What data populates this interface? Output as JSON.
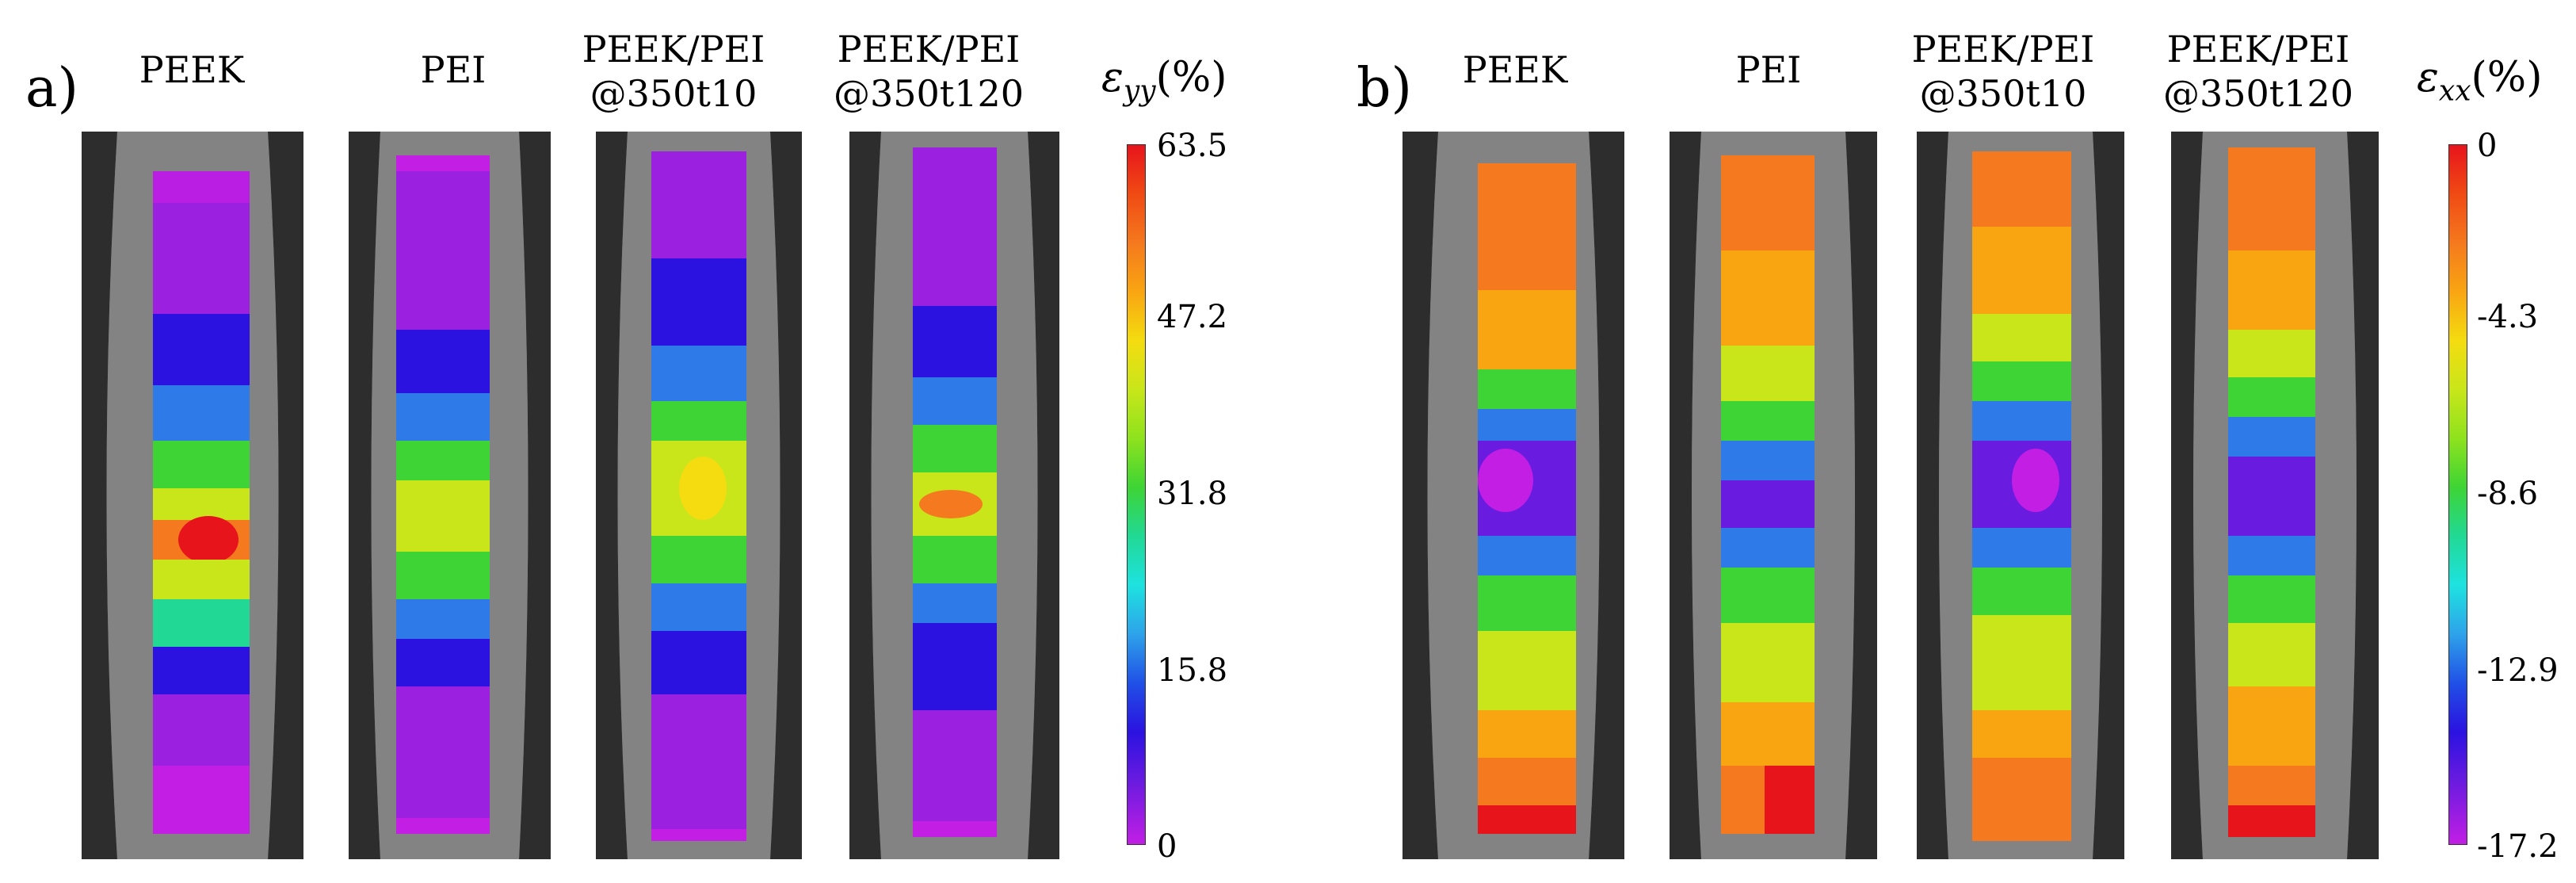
{
  "panels": [
    {
      "label": "a)",
      "titles": [
        [
          "PEEK"
        ],
        [
          "PEI"
        ],
        [
          "PEEK/PEI",
          "@350t10"
        ],
        [
          "PEEK/PEI",
          "@350t120"
        ]
      ],
      "colorbar": {
        "symbol": "ε",
        "subscript": "yy",
        "unit": "(%)",
        "ticks": [
          "63.5",
          "47.2",
          "31.8",
          "15.8",
          "0"
        ]
      }
    },
    {
      "label": "b)",
      "titles": [
        [
          "PEEK"
        ],
        [
          "PEI"
        ],
        [
          "PEEK/PEI",
          "@350t10"
        ],
        [
          "PEEK/PEI",
          "@350t120"
        ]
      ],
      "colorbar": {
        "symbol": "ε",
        "subscript": "xx",
        "unit": "(%)",
        "ticks": [
          "0",
          "-4.3",
          "-8.6",
          "-12.9",
          "-17.2"
        ]
      }
    }
  ],
  "colors": {
    "scale_top_to_bottom": [
      "#e8141c",
      "#f04a14",
      "#f5791e",
      "#f9a512",
      "#f4dc10",
      "#c8e61a",
      "#8ee21e",
      "#3ed435",
      "#21d995",
      "#1ee2e0",
      "#2ea2ea",
      "#2050e6",
      "#2b12e0",
      "#6a1be0",
      "#c21ee4"
    ]
  }
}
